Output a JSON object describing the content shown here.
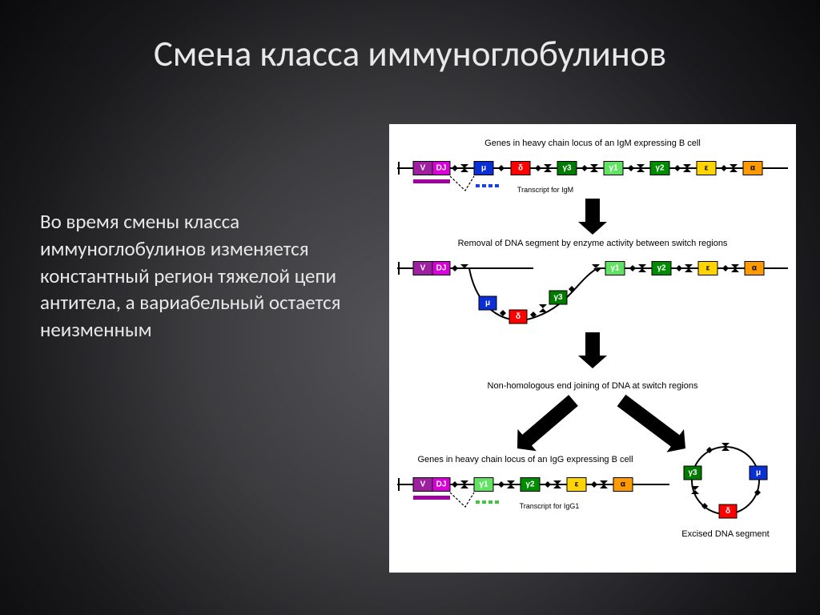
{
  "title": "Смена класса иммуноглобулинов",
  "body": "Во время смены класса иммуноглобулинов изменяется константный регион тяжелой цепи антитела, а вариабельный остается неизменным",
  "diagram": {
    "type": "infographic",
    "background_color": "#ffffff",
    "line_color": "#000000",
    "arrow_color": "#000000",
    "captions": {
      "row1_top": "Genes in heavy chain locus of an IgM expressing B cell",
      "row1_bottom": "Transcript for IgM",
      "row2_top": "Removal of DNA segment by enzyme activity between switch regions",
      "row3_top": "Non-homologous end joining of DNA at switch regions",
      "row4_top": "Genes in heavy chain locus of an IgG expressing B cell",
      "row4_bottom": "Transcript for IgG1",
      "excised": "Excised DNA segment"
    },
    "palette": {
      "V": "#9e1fa0",
      "DJ": "#d900d9",
      "mu": "#0a2fd4",
      "delta": "#ff0000",
      "gamma3": "#007a00",
      "gamma1": "#62e262",
      "gamma2": "#008c00",
      "epsilon": "#ffd400",
      "alpha": "#ff9a00",
      "Vbar": "#a000a0",
      "transcript_mu": "#1a3fe6",
      "transcript_g1": "#3fc63f",
      "switch": "#000000"
    },
    "segment_labels": {
      "V": "V",
      "DJ": "DJ",
      "mu": "μ",
      "delta": "δ",
      "gamma3": "γ3",
      "gamma1": "γ1",
      "gamma2": "γ2",
      "epsilon": "ε",
      "alpha": "α"
    },
    "font_sizes": {
      "caption": 11,
      "seg_label": 10
    }
  }
}
